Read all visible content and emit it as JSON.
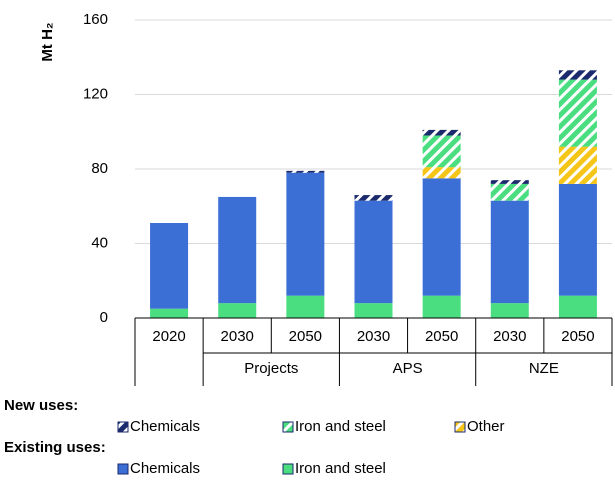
{
  "chart_data": {
    "type": "stacked-bar",
    "y_label": "Mt H₂",
    "categories": [
      "2020",
      "2030",
      "2050",
      "2030",
      "2050",
      "2030",
      "2050"
    ],
    "group_labels": [
      "Projects",
      "APS",
      "NZE"
    ],
    "ylim": [
      0,
      160
    ],
    "yticks": [
      0,
      40,
      80,
      120,
      160
    ],
    "grid": true,
    "legend_titles": [
      "New uses:",
      "Existing uses:"
    ],
    "series": [
      {
        "name": "Iron and steel",
        "color": "#4ade80",
        "hatch": false,
        "values": [
          5,
          8,
          12,
          8,
          12,
          8,
          12
        ]
      },
      {
        "name": "Chemicals",
        "color": "#3b6fd6",
        "hatch": false,
        "values": [
          46,
          57,
          66,
          55,
          63,
          55,
          60
        ]
      },
      {
        "name": "Other",
        "color": "#f5c518",
        "hatch": true,
        "values": [
          0,
          0,
          0,
          0,
          6,
          0,
          20
        ]
      },
      {
        "name": "Iron and steel",
        "color": "#4ade80",
        "hatch": true,
        "values": [
          0,
          0,
          0,
          0,
          17,
          9,
          36
        ]
      },
      {
        "name": "Chemicals",
        "color": "#1a2a6c",
        "hatch": true,
        "values": [
          0,
          0,
          1,
          3,
          3,
          2,
          5
        ]
      }
    ]
  }
}
